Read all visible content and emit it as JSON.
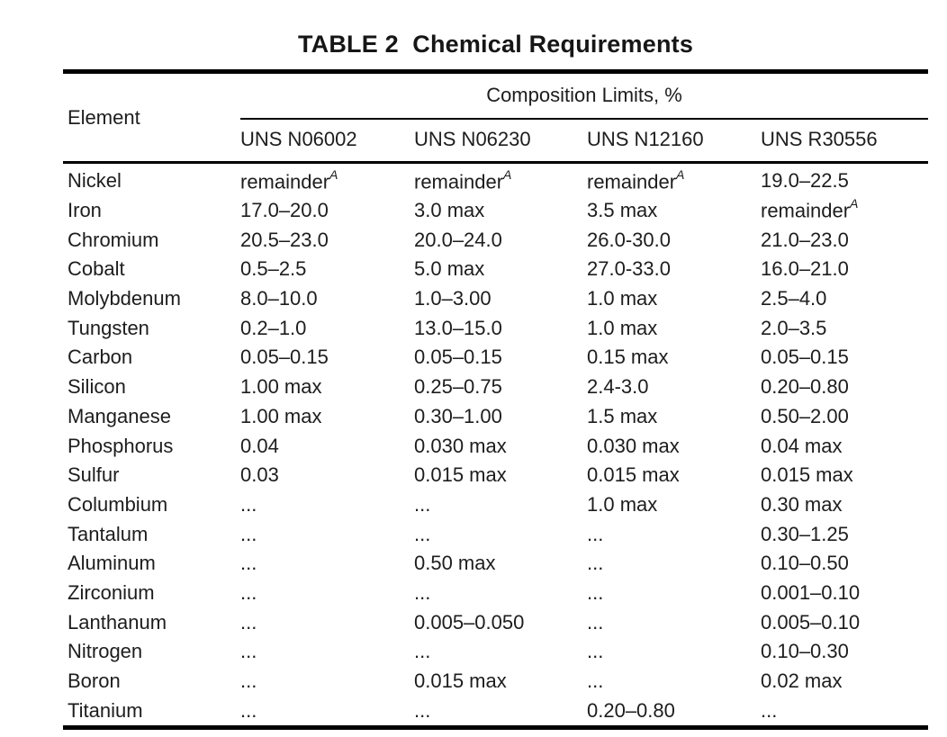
{
  "title": "TABLE 2  Chemical Requirements",
  "table": {
    "element_header": "Element",
    "group_header": "Composition Limits, %",
    "columns": [
      "UNS N06002",
      "UNS N06230",
      "UNS N12160",
      "UNS R30556"
    ],
    "rows": [
      {
        "element": "Nickel",
        "values": [
          {
            "text": "remainder",
            "sup": "A"
          },
          {
            "text": "remainder",
            "sup": "A"
          },
          {
            "text": "remainder",
            "sup": "A"
          },
          "19.0–22.5"
        ]
      },
      {
        "element": "Iron",
        "values": [
          "17.0–20.0",
          "3.0 max",
          "3.5 max",
          {
            "text": "remainder",
            "sup": "A"
          }
        ]
      },
      {
        "element": "Chromium",
        "values": [
          "20.5–23.0",
          "20.0–24.0",
          "26.0-30.0",
          "21.0–23.0"
        ]
      },
      {
        "element": "Cobalt",
        "values": [
          "0.5–2.5",
          "5.0 max",
          "27.0-33.0",
          "16.0–21.0"
        ]
      },
      {
        "element": "Molybdenum",
        "values": [
          "8.0–10.0",
          "1.0–3.00",
          "1.0 max",
          "2.5–4.0"
        ]
      },
      {
        "element": "Tungsten",
        "values": [
          "0.2–1.0",
          "13.0–15.0",
          "1.0 max",
          "2.0–3.5"
        ]
      },
      {
        "element": "Carbon",
        "values": [
          "0.05–0.15",
          "0.05–0.15",
          "0.15 max",
          "0.05–0.15"
        ]
      },
      {
        "element": "Silicon",
        "values": [
          "1.00 max",
          "0.25–0.75",
          "2.4-3.0",
          "0.20–0.80"
        ]
      },
      {
        "element": "Manganese",
        "values": [
          "1.00 max",
          "0.30–1.00",
          "1.5 max",
          "0.50–2.00"
        ]
      },
      {
        "element": "Phosphorus",
        "values": [
          "0.04",
          "0.030 max",
          "0.030 max",
          "0.04 max"
        ]
      },
      {
        "element": "Sulfur",
        "values": [
          "0.03",
          "0.015 max",
          "0.015 max",
          "0.015 max"
        ]
      },
      {
        "element": "Columbium",
        "values": [
          "...",
          "...",
          "1.0 max",
          "0.30 max"
        ]
      },
      {
        "element": "Tantalum",
        "values": [
          "...",
          "...",
          "...",
          "0.30–1.25"
        ]
      },
      {
        "element": "Aluminum",
        "values": [
          "...",
          "0.50 max",
          "...",
          "0.10–0.50"
        ]
      },
      {
        "element": "Zirconium",
        "values": [
          "...",
          "...",
          "...",
          "0.001–0.10"
        ]
      },
      {
        "element": "Lanthanum",
        "values": [
          "...",
          "0.005–0.050",
          "...",
          "0.005–0.10"
        ]
      },
      {
        "element": "Nitrogen",
        "values": [
          "...",
          "...",
          "...",
          "0.10–0.30"
        ]
      },
      {
        "element": "Boron",
        "values": [
          "...",
          "0.015 max",
          "...",
          "0.02 max"
        ]
      },
      {
        "element": "Titanium",
        "values": [
          "...",
          "...",
          "0.20–0.80",
          "..."
        ]
      }
    ]
  }
}
